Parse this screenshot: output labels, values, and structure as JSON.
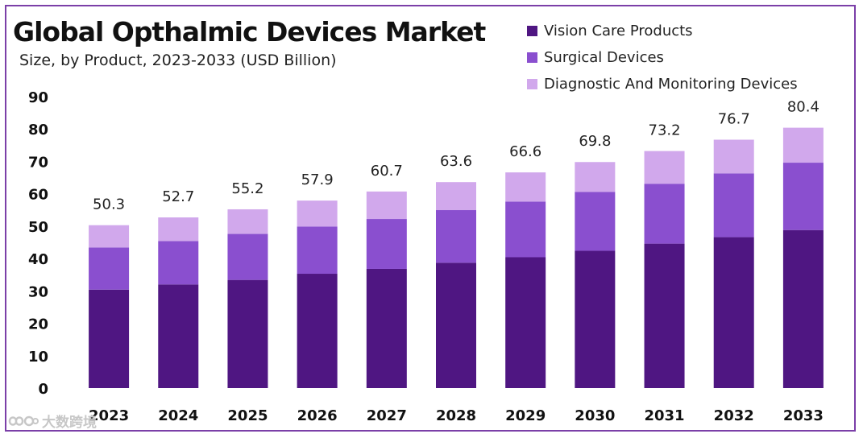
{
  "colors": {
    "vision_care": "#4f1682",
    "surgical": "#8a4fcf",
    "diagnostic": "#d1a8ec",
    "border": "#7b3fa8"
  },
  "watermark": {
    "text": "大数跨境",
    "icon": "infinity-logo-icon"
  },
  "chart_data": {
    "type": "bar",
    "stacked": true,
    "title": "Global Opthalmic Devices Market",
    "subtitle": "Size, by Product, 2023-2033 (USD Billion)",
    "xlabel": "",
    "ylabel": "",
    "ylim": [
      0,
      90
    ],
    "yticks": [
      0,
      10,
      20,
      30,
      40,
      50,
      60,
      70,
      80,
      90
    ],
    "grid": false,
    "legend_position": "top-right",
    "categories": [
      "2023",
      "2024",
      "2025",
      "2026",
      "2027",
      "2028",
      "2029",
      "2030",
      "2031",
      "2032",
      "2033"
    ],
    "series": [
      {
        "name": "Vision Care Products",
        "values": [
          30.4,
          32.0,
          33.4,
          35.3,
          36.8,
          38.7,
          40.4,
          42.4,
          44.6,
          46.6,
          48.8
        ]
      },
      {
        "name": "Surgical Devices",
        "values": [
          13.0,
          13.4,
          14.2,
          14.6,
          15.4,
          16.3,
          17.2,
          18.2,
          18.5,
          19.7,
          20.8
        ]
      },
      {
        "name": "Diagnostic And Monitoring Devices",
        "values": [
          6.9,
          7.3,
          7.6,
          8.0,
          8.5,
          8.6,
          9.0,
          9.2,
          10.1,
          10.4,
          10.8
        ]
      }
    ],
    "totals": [
      50.3,
      52.7,
      55.2,
      57.9,
      60.7,
      63.6,
      66.6,
      69.8,
      73.2,
      76.7,
      80.4
    ],
    "total_labels": [
      "50.3",
      "52.7",
      "55.2",
      "57.9",
      "60.7",
      "63.6",
      "66.6",
      "69.8",
      "73.2",
      "76.7",
      "80.4"
    ]
  }
}
